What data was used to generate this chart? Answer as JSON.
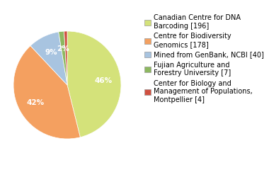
{
  "labels": [
    "Canadian Centre for DNA\nBarcoding [196]",
    "Centre for Biodiversity\nGenomics [178]",
    "Mined from GenBank, NCBI [40]",
    "Fujian Agriculture and\nForestry University [7]",
    "Center for Biology and\nManagement of Populations,\nMontpellier [4]"
  ],
  "values": [
    196,
    178,
    40,
    7,
    4
  ],
  "colors": [
    "#d4e27a",
    "#f4a060",
    "#a8c4e0",
    "#8db860",
    "#d05040"
  ],
  "background_color": "#ffffff",
  "fontsize": 7.0,
  "pct_fontsize": 7.5
}
